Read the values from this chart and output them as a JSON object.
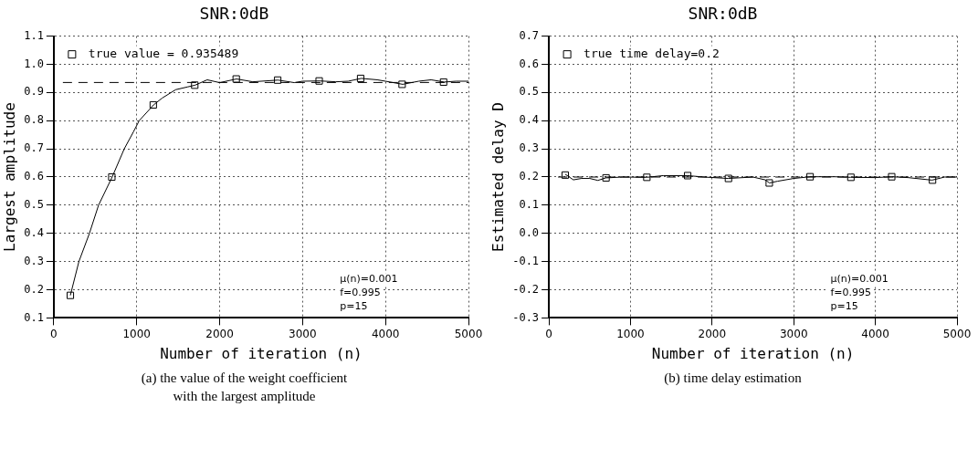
{
  "chart_data": [
    {
      "type": "line",
      "title": "SNR:0dB",
      "xlabel": "Number of iteration (n)",
      "ylabel": "Largest amplitude",
      "xlim": [
        0,
        5000
      ],
      "xticks": [
        0,
        1000,
        2000,
        3000,
        4000,
        5000
      ],
      "ylim": [
        0.1,
        1.1
      ],
      "yticks": [
        {
          "value": 0.1,
          "label": "0.1"
        },
        {
          "value": 0.2,
          "label": "0.2"
        },
        {
          "value": 0.3,
          "label": "0.3"
        },
        {
          "value": 0.4,
          "label": "0.4"
        },
        {
          "value": 0.5,
          "label": "0.5"
        },
        {
          "value": 0.6,
          "label": "0.6"
        },
        {
          "value": 0.7,
          "label": "0.7"
        },
        {
          "value": 0.8,
          "label": "0.8"
        },
        {
          "value": 0.9,
          "label": "0.9"
        },
        {
          "value": 1.0,
          "label": "1.0"
        },
        {
          "value": 1.1,
          "label": "1.1"
        }
      ],
      "grid": true,
      "legend": "top left",
      "series": [
        {
          "type": "line",
          "color": "#000000",
          "marker": "none",
          "x": [
            200,
            303,
            430,
            540,
            704,
            850,
            960,
            1030,
            1204,
            1306,
            1470,
            1617,
            1704,
            1850,
            2000,
            2204,
            2400,
            2704,
            2900,
            3000,
            3208,
            3400,
            3550,
            3708,
            3900,
            4000,
            4208,
            4400,
            4550,
            4708,
            4850,
            5000
          ],
          "values": [
            0.18,
            0.3,
            0.4,
            0.5,
            0.6,
            0.7,
            0.76,
            0.8,
            0.856,
            0.88,
            0.91,
            0.92,
            0.926,
            0.945,
            0.935,
            0.948,
            0.938,
            0.944,
            0.935,
            0.94,
            0.941,
            0.938,
            0.94,
            0.95,
            0.945,
            0.94,
            0.929,
            0.94,
            0.945,
            0.937,
            0.94,
            0.94
          ]
        },
        {
          "type": "scatter",
          "name": "true value = 0.935489",
          "color": "#000000",
          "marker": "square",
          "x": [
            200,
            700,
            1200,
            1700,
            2200,
            2700,
            3200,
            3700,
            4200,
            4700
          ],
          "values": [
            0.18,
            0.6,
            0.856,
            0.926,
            0.948,
            0.944,
            0.941,
            0.95,
            0.929,
            0.937
          ]
        }
      ],
      "ref_lines": [
        {
          "axis": "y",
          "value": 0.935489,
          "line_style": "dashed",
          "color": "#000000"
        }
      ],
      "annotations": [
        "μ(n)=0.001",
        "f=0.995",
        "p=15",
        "(a) the value of the weight coefficient\nwith the largest amplitude"
      ]
    },
    {
      "type": "line",
      "title": "SNR:0dB",
      "xlabel": "Number of iteration (n)",
      "ylabel": "Estimated delay D",
      "xlim": [
        0,
        5000
      ],
      "xticks": [
        0,
        1000,
        2000,
        3000,
        4000,
        5000
      ],
      "ylim": [
        -0.3,
        0.7
      ],
      "yticks": [
        {
          "value": -0.3,
          "label": "-0.3"
        },
        {
          "value": -0.2,
          "label": "-0.2"
        },
        {
          "value": -0.1,
          "label": "-0.1"
        },
        {
          "value": 0,
          "label": "0.0"
        },
        {
          "value": 0.1,
          "label": "0.1"
        },
        {
          "value": 0.2,
          "label": "0.2"
        },
        {
          "value": 0.3,
          "label": "0.3"
        },
        {
          "value": 0.4,
          "label": "0.4"
        },
        {
          "value": 0.5,
          "label": "0.5"
        },
        {
          "value": 0.6,
          "label": "0.6"
        },
        {
          "value": 0.7,
          "label": "0.7"
        }
      ],
      "grid": true,
      "legend": "top left",
      "series": [
        {
          "type": "line",
          "color": "#000000",
          "marker": "none",
          "x": [
            200,
            300,
            400,
            500,
            600,
            698,
            900,
            1200,
            1400,
            1698,
            1900,
            2196,
            2500,
            2650,
            2702,
            2800,
            3000,
            3200,
            3500,
            3698,
            4000,
            4196,
            4400,
            4694,
            4850,
            5000
          ],
          "values": [
            0.21,
            0.19,
            0.195,
            0.195,
            0.188,
            0.197,
            0.2,
            0.199,
            0.205,
            0.205,
            0.2,
            0.195,
            0.2,
            0.19,
            0.179,
            0.185,
            0.195,
            0.201,
            0.201,
            0.199,
            0.198,
            0.201,
            0.198,
            0.189,
            0.2,
            0.2
          ]
        },
        {
          "type": "scatter",
          "name": "true time delay=0.2",
          "color": "#000000",
          "marker": "square",
          "x": [
            200,
            700,
            1200,
            1700,
            2200,
            2700,
            3200,
            3700,
            4200,
            4700
          ],
          "values": [
            0.207,
            0.197,
            0.199,
            0.205,
            0.195,
            0.179,
            0.201,
            0.199,
            0.201,
            0.189
          ]
        }
      ],
      "ref_lines": [
        {
          "axis": "y",
          "value": 0.2,
          "line_style": "dashed",
          "color": "#000000"
        }
      ],
      "annotations": [
        "μ(n)=0.001",
        "f=0.995",
        "p=15",
        "(b) time delay estimation"
      ]
    }
  ]
}
